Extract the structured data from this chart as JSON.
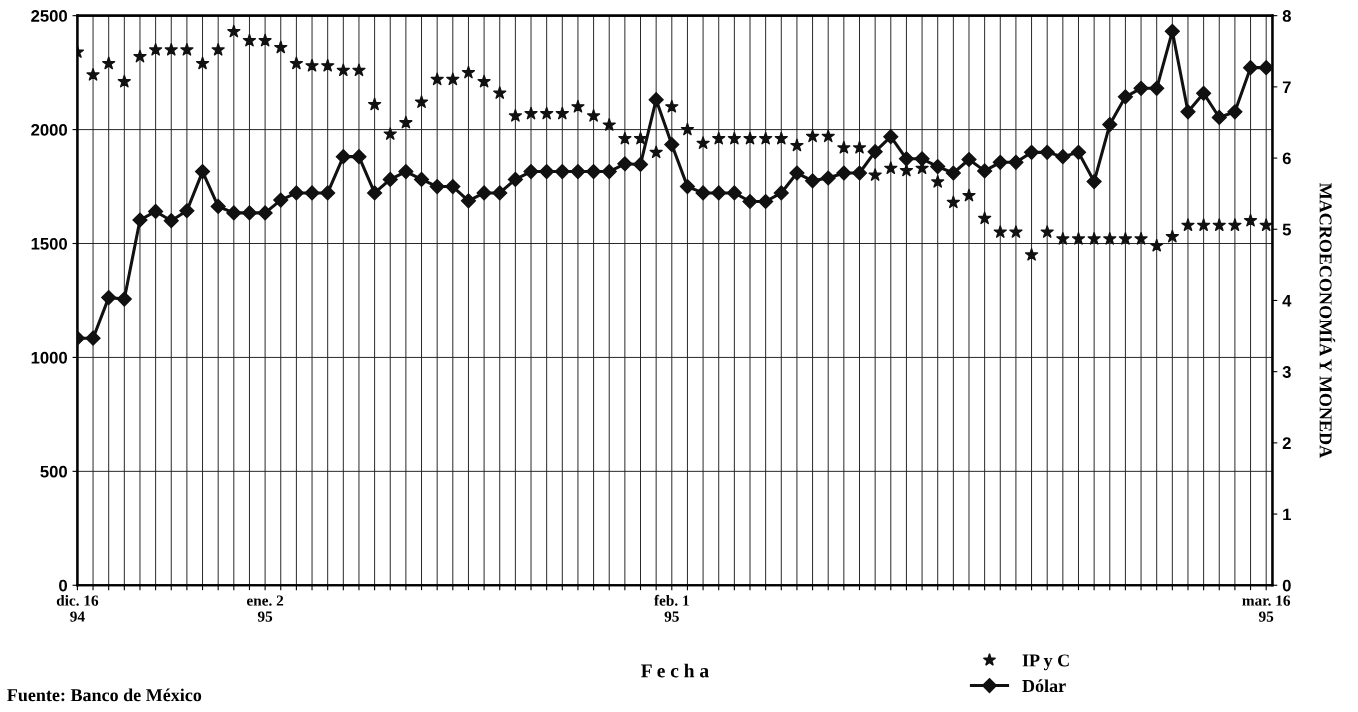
{
  "chart_data": {
    "type": "line",
    "xlabel": "F e c h a",
    "categories": [
      "dic. 16\n94",
      null,
      null,
      null,
      null,
      null,
      null,
      null,
      null,
      null,
      null,
      null,
      "ene. 2\n95",
      null,
      null,
      null,
      null,
      null,
      null,
      null,
      null,
      null,
      null,
      null,
      null,
      null,
      null,
      null,
      null,
      null,
      null,
      null,
      null,
      null,
      null,
      null,
      null,
      null,
      "feb. 1\n95",
      null,
      null,
      null,
      null,
      null,
      null,
      null,
      null,
      null,
      null,
      null,
      null,
      null,
      null,
      null,
      null,
      null,
      null,
      null,
      null,
      null,
      null,
      null,
      null,
      null,
      null,
      null,
      null,
      null,
      null,
      null,
      null,
      null,
      null,
      null,
      null,
      null,
      "mar. 16\n95"
    ],
    "ylim": [
      0,
      2500
    ],
    "yticks": [
      0,
      500,
      1000,
      1500,
      2000,
      2500
    ],
    "y2lim": [
      0,
      8
    ],
    "y2ticks": [
      0,
      1,
      2,
      3,
      4,
      5,
      6,
      7,
      8
    ],
    "grid": true,
    "legend": "bottom right",
    "series": [
      {
        "name": "IP y C",
        "type": "scatter",
        "marker": "star",
        "color": "#111111",
        "values": [
          2340,
          2240,
          2290,
          2210,
          2320,
          2350,
          2350,
          2350,
          2290,
          2350,
          2430,
          2390,
          2390,
          2360,
          2290,
          2280,
          2280,
          2260,
          2260,
          2110,
          1980,
          2030,
          2120,
          2220,
          2220,
          2250,
          2210,
          2160,
          2060,
          2070,
          2070,
          2070,
          2100,
          2060,
          2020,
          1960,
          1960,
          1900,
          2100,
          2000,
          1940,
          1960,
          1960,
          1960,
          1960,
          1960,
          1930,
          1970,
          1970,
          1920,
          1920,
          1800,
          1830,
          1820,
          1830,
          1770,
          1680,
          1710,
          1610,
          1550,
          1550,
          1450,
          1550,
          1520,
          1520,
          1520,
          1520,
          1520,
          1520,
          1490,
          1530,
          1580,
          1580,
          1580,
          1580,
          1600,
          1580
        ]
      },
      {
        "name": "Dólar",
        "axis": "y2",
        "marker": "diamond",
        "line_style": "solid",
        "color": "#111111",
        "values": [
          3.47,
          3.47,
          4.04,
          4.02,
          5.13,
          5.25,
          5.12,
          5.26,
          5.81,
          5.32,
          5.23,
          5.23,
          5.23,
          5.41,
          5.51,
          5.51,
          5.51,
          6.02,
          6.02,
          5.51,
          5.7,
          5.81,
          5.7,
          5.6,
          5.6,
          5.4,
          5.51,
          5.51,
          5.7,
          5.81,
          5.81,
          5.81,
          5.81,
          5.81,
          5.81,
          5.92,
          5.91,
          6.82,
          6.19,
          5.6,
          5.51,
          5.51,
          5.51,
          5.39,
          5.39,
          5.51,
          5.79,
          5.68,
          5.72,
          5.79,
          5.79,
          6.09,
          6.3,
          5.99,
          5.99,
          5.88,
          5.79,
          5.98,
          5.82,
          5.94,
          5.94,
          6.08,
          6.08,
          6.02,
          6.08,
          5.67,
          6.47,
          6.86,
          6.98,
          6.98,
          7.78,
          6.65,
          6.91,
          6.57,
          6.65,
          7.27,
          7.27
        ]
      }
    ],
    "annotations": [
      "MACROECONOMÍA Y MONEDA",
      "Fuente: Banco de México"
    ]
  }
}
